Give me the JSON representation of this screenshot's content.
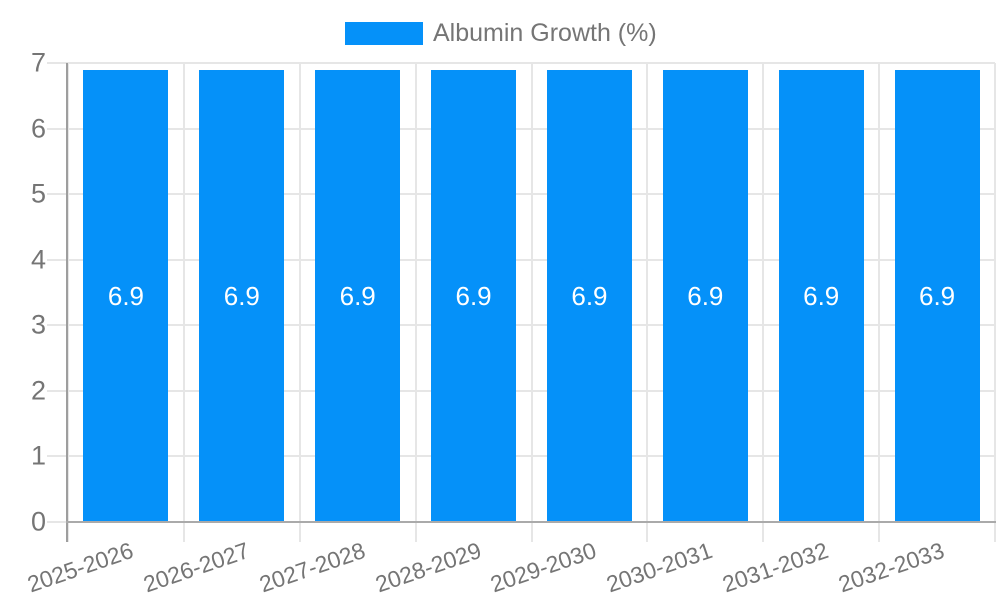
{
  "chart_data": {
    "type": "bar",
    "title": "Albumin Growth (%)",
    "legend": {
      "position": "top",
      "label": "Albumin Growth (%)"
    },
    "categories": [
      "2025-2026",
      "2026-2027",
      "2027-2028",
      "2028-2029",
      "2029-2030",
      "2030-2031",
      "2031-2032",
      "2032-2033"
    ],
    "series": [
      {
        "name": "Albumin Growth (%)",
        "values": [
          6.9,
          6.9,
          6.9,
          6.9,
          6.9,
          6.9,
          6.9,
          6.9
        ]
      }
    ],
    "bar_value_labels": [
      "6.9",
      "6.9",
      "6.9",
      "6.9",
      "6.9",
      "6.9",
      "6.9",
      "6.9"
    ],
    "xlabel": "",
    "ylabel": "",
    "ylim": [
      0,
      7
    ],
    "yticks": [
      0,
      1,
      2,
      3,
      4,
      5,
      6,
      7
    ],
    "grid": true,
    "x_label_rotation_deg": -19,
    "colors": {
      "bar": "#0591f9",
      "axis_text": "#757575",
      "bar_label_text": "#ffffff",
      "gridline": "#e6e6e6",
      "y_axis_line": "#9e9e9e",
      "x_axis_line": "#aaaaaa",
      "background": "#ffffff"
    }
  }
}
